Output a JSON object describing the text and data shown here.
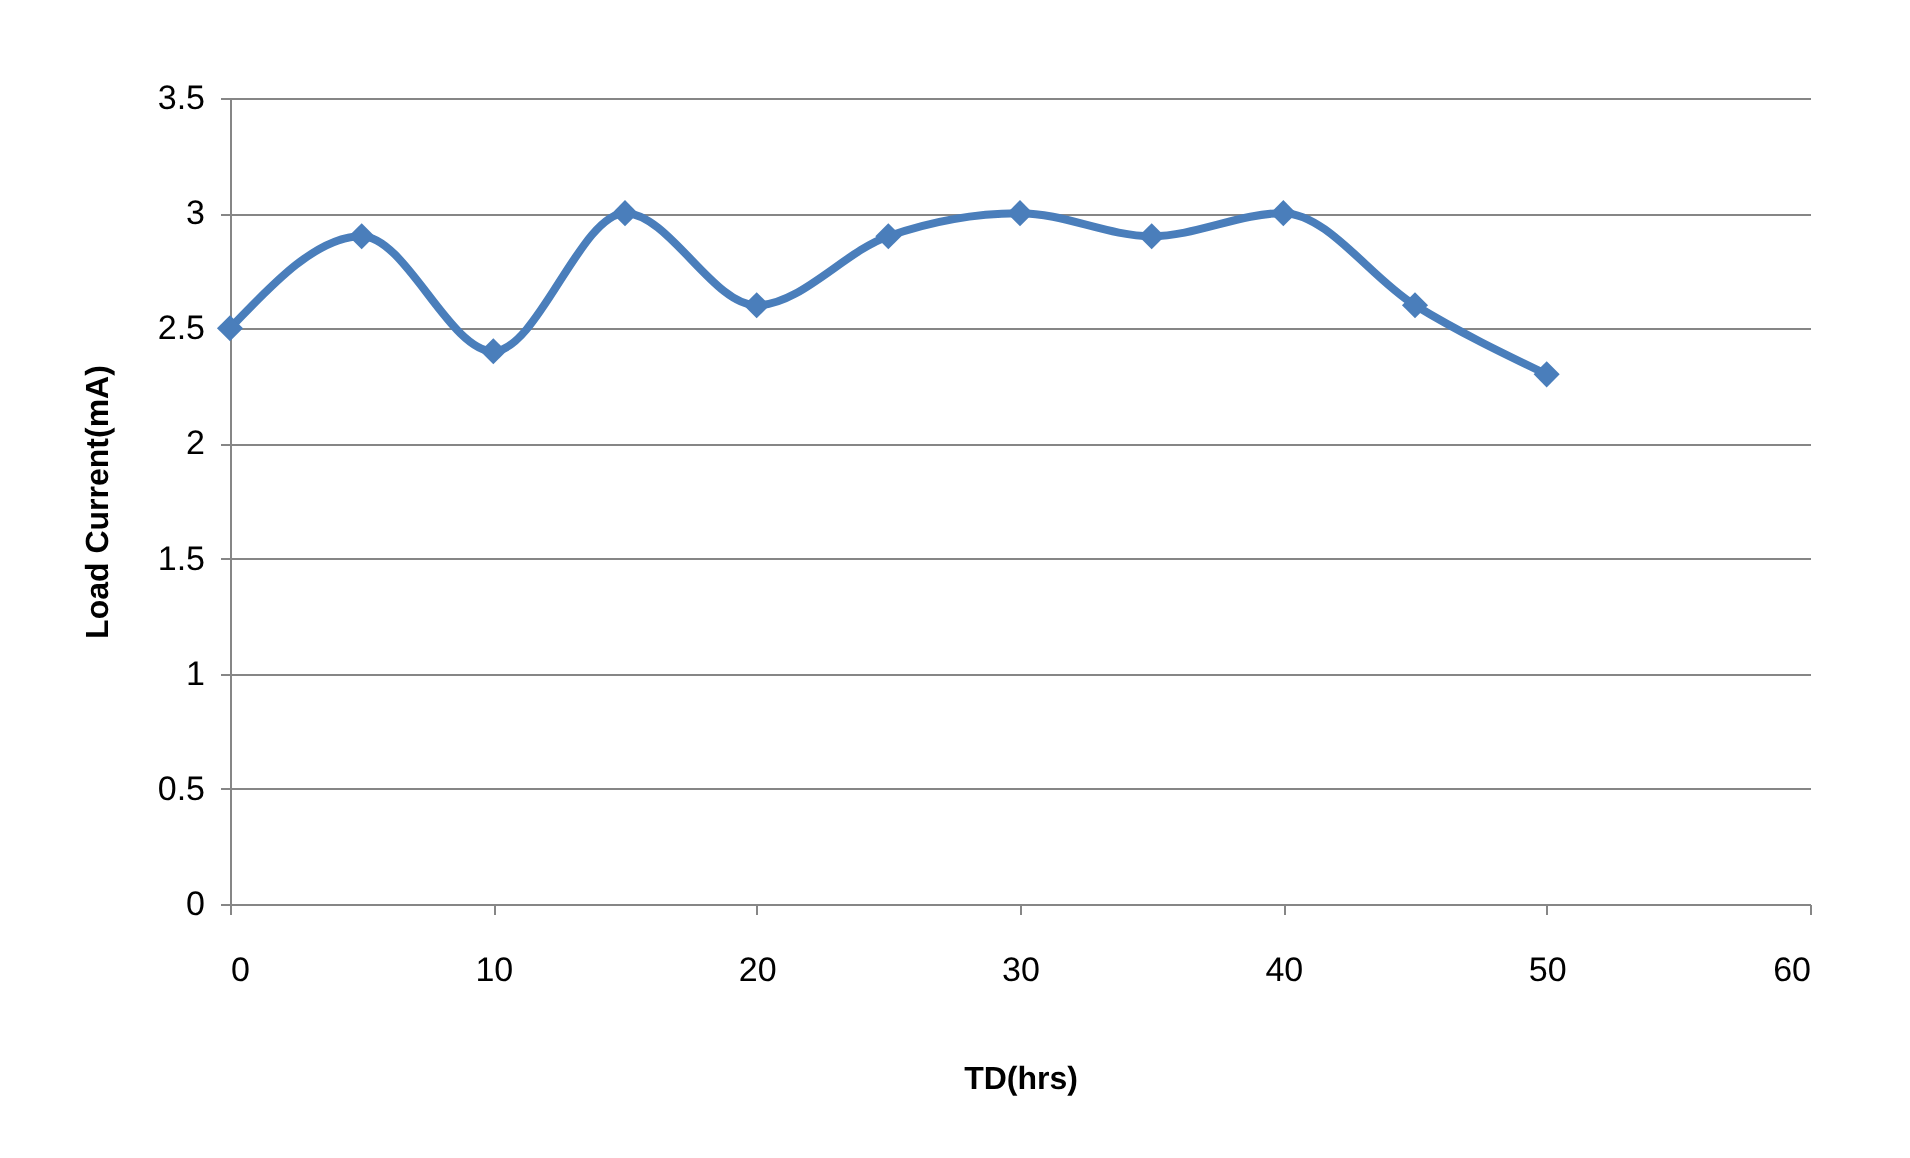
{
  "chart_data": {
    "type": "line",
    "xlabel": "TD(hrs)",
    "ylabel": "Load Current(mA)",
    "x": [
      0,
      5,
      10,
      15,
      20,
      25,
      30,
      35,
      40,
      45,
      50
    ],
    "series": [
      {
        "color": "#4a7ebb",
        "values": [
          2.5,
          2.9,
          2.4,
          3.0,
          2.6,
          2.9,
          3.0,
          2.9,
          3.0,
          2.6,
          2.3
        ]
      }
    ],
    "xlim": [
      0,
      60
    ],
    "xticks": [
      0,
      10,
      20,
      30,
      40,
      50,
      60
    ],
    "ylim": [
      0,
      3.5
    ],
    "yticks": [
      0,
      0.5,
      1,
      1.5,
      2,
      2.5,
      3,
      3.5
    ],
    "grid": "y",
    "marker": "diamond",
    "line_style": "solid"
  }
}
